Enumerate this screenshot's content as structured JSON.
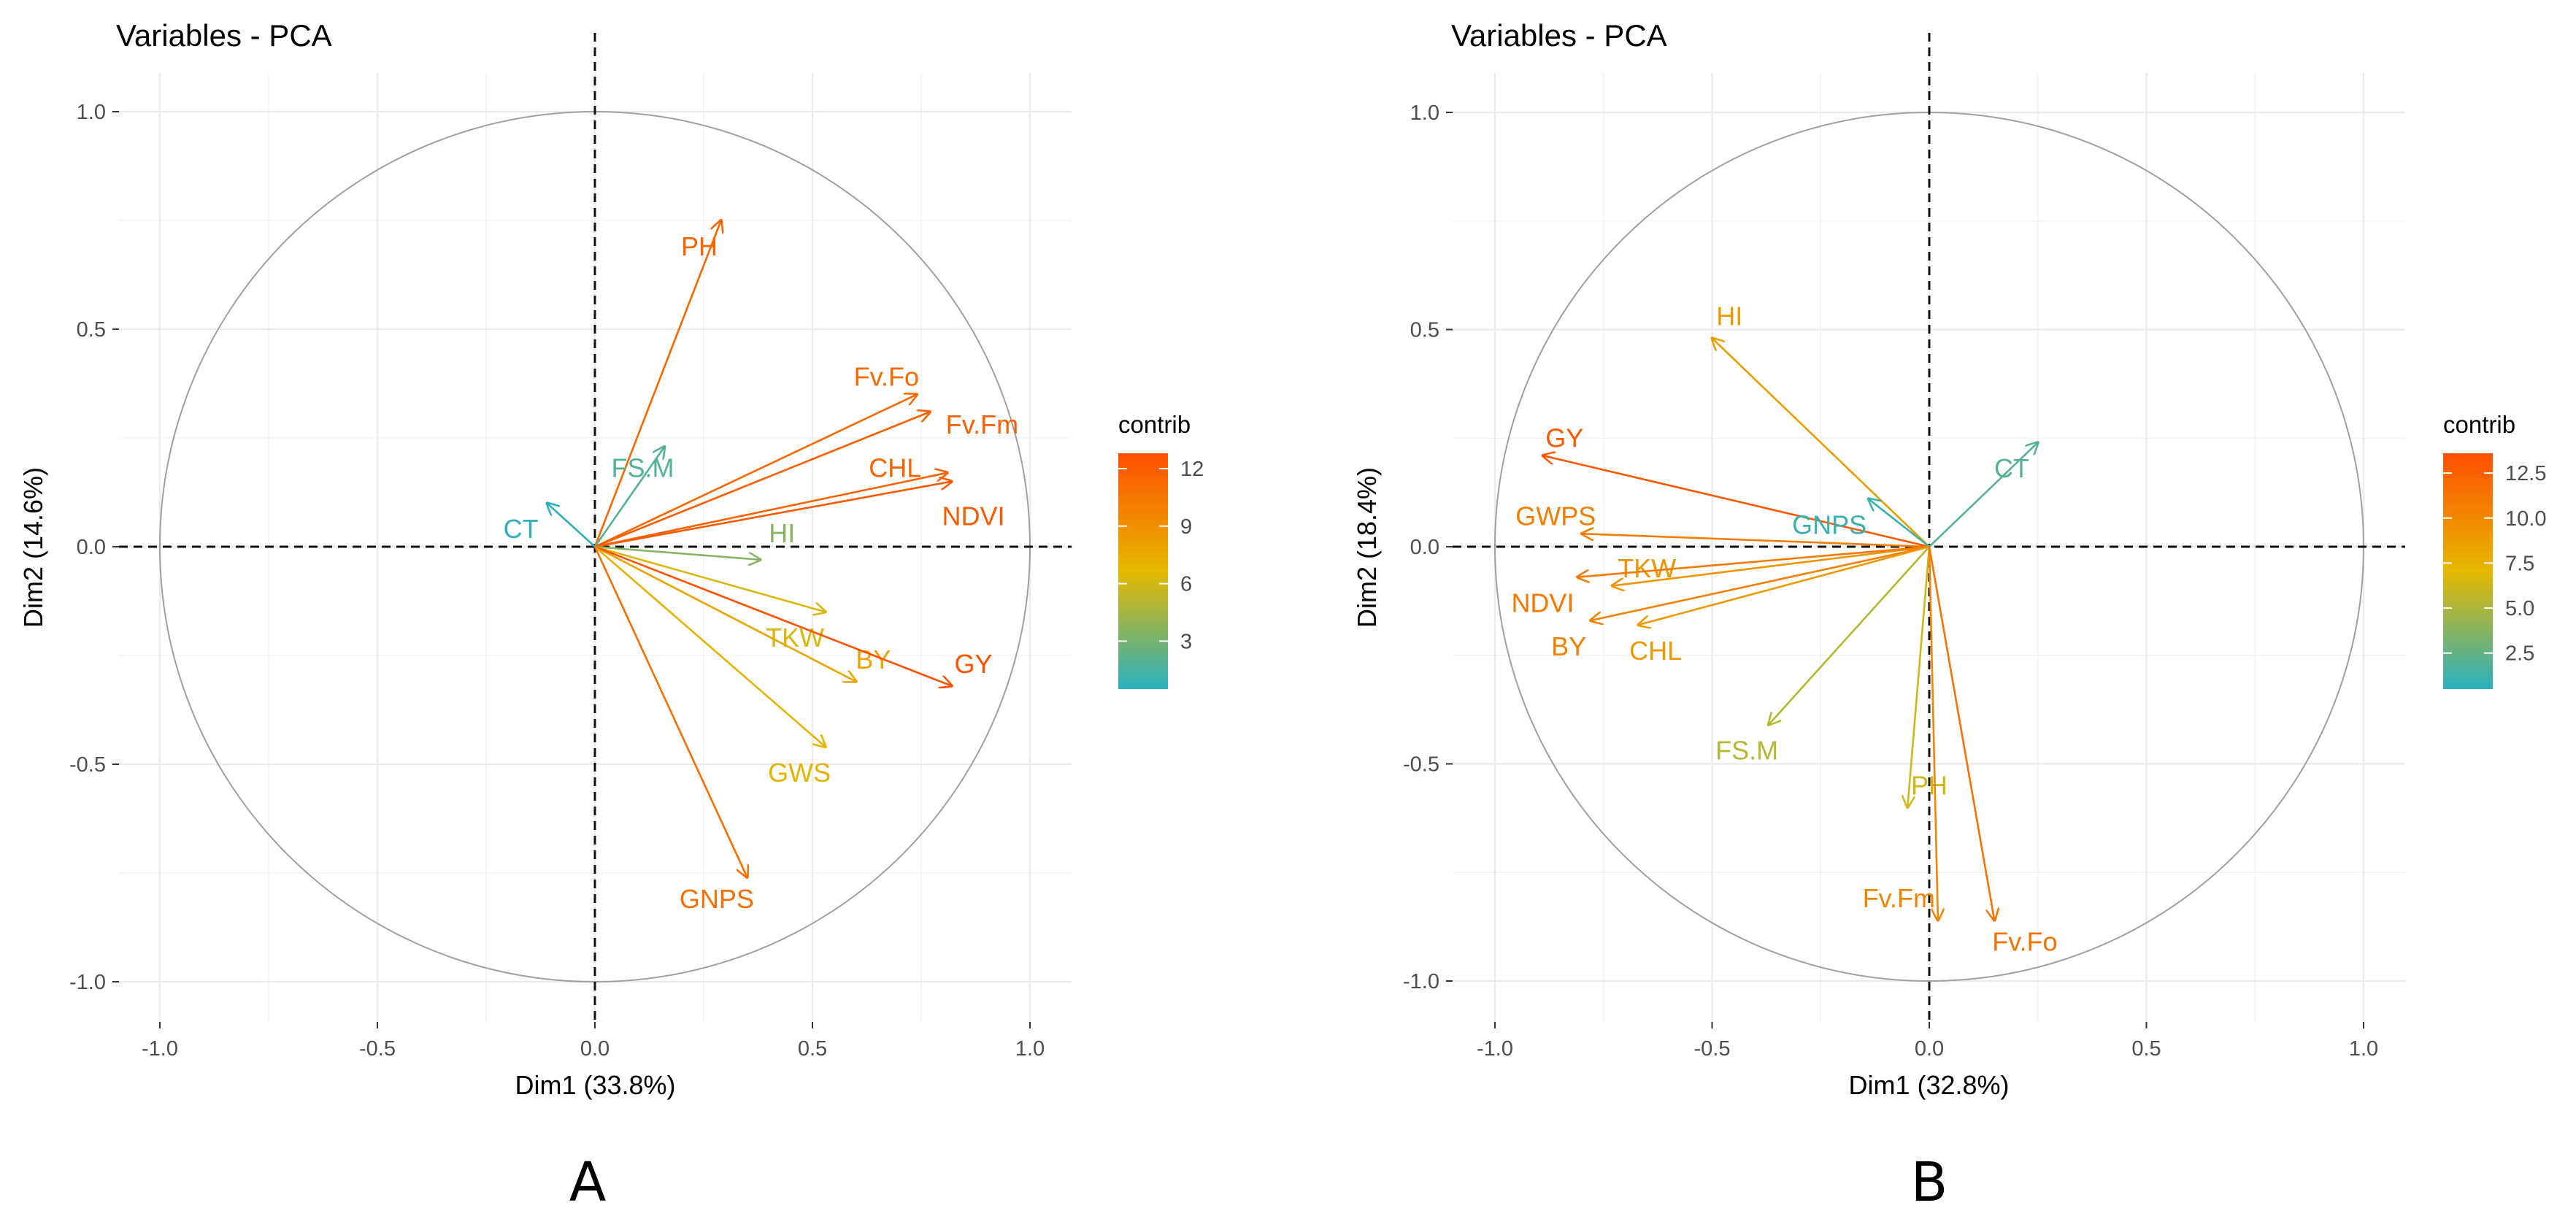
{
  "colors": {
    "low": "#2ab0c0",
    "mid": "#e6b800",
    "high": "#ff4f00",
    "grid": "#ebebeb",
    "circle": "#a0a0a0",
    "axis_text": "#4d4d4d"
  },
  "chart_data": [
    {
      "type": "scatter",
      "panel_label": "A",
      "title": "Variables - PCA",
      "xlabel": "Dim1 (33.8%)",
      "ylabel": "Dim2 (14.6%)",
      "xlim": [
        -1.1,
        1.1
      ],
      "ylim": [
        -1.1,
        1.1
      ],
      "ticks": [
        -1.0,
        -0.5,
        0.0,
        0.5,
        1.0
      ],
      "tick_labels": [
        "-1.0",
        "-0.5",
        "0.0",
        "0.5",
        "1.0"
      ],
      "legend": {
        "title": "contrib",
        "min": 0.5,
        "max": 12.8,
        "ticks": [
          3,
          6,
          9,
          12
        ],
        "tick_labels": [
          "3",
          "6",
          "9",
          "12"
        ]
      },
      "variables": [
        {
          "name": "PH",
          "x": 0.29,
          "y": 0.75,
          "label_x": 0.24,
          "label_y": 0.69,
          "contrib": 11.5
        },
        {
          "name": "Fv.Fo",
          "x": 0.74,
          "y": 0.35,
          "label_x": 0.67,
          "label_y": 0.39,
          "contrib": 11.3
        },
        {
          "name": "Fv.Fm",
          "x": 0.77,
          "y": 0.31,
          "label_x": 0.89,
          "label_y": 0.28,
          "contrib": 11.8
        },
        {
          "name": "FS.M",
          "x": 0.16,
          "y": 0.23,
          "label_x": 0.11,
          "label_y": 0.18,
          "contrib": 1.8
        },
        {
          "name": "CHL",
          "x": 0.81,
          "y": 0.17,
          "label_x": 0.69,
          "label_y": 0.18,
          "contrib": 11.6
        },
        {
          "name": "NDVI",
          "x": 0.82,
          "y": 0.15,
          "label_x": 0.87,
          "label_y": 0.07,
          "contrib": 12.2
        },
        {
          "name": "CT",
          "x": -0.11,
          "y": 0.1,
          "label_x": -0.17,
          "label_y": 0.04,
          "contrib": 0.6
        },
        {
          "name": "HI",
          "x": 0.38,
          "y": -0.03,
          "label_x": 0.43,
          "label_y": 0.03,
          "contrib": 3.5
        },
        {
          "name": "TKW",
          "x": 0.53,
          "y": -0.15,
          "label_x": 0.46,
          "label_y": -0.21,
          "contrib": 6.2
        },
        {
          "name": "BY",
          "x": 0.6,
          "y": -0.31,
          "label_x": 0.64,
          "label_y": -0.26,
          "contrib": 7.8
        },
        {
          "name": "GY",
          "x": 0.82,
          "y": -0.32,
          "label_x": 0.87,
          "label_y": -0.27,
          "contrib": 12.6
        },
        {
          "name": "GWS",
          "x": 0.53,
          "y": -0.46,
          "label_x": 0.47,
          "label_y": -0.52,
          "contrib": 7.0
        },
        {
          "name": "GNPS",
          "x": 0.35,
          "y": -0.76,
          "label_x": 0.28,
          "label_y": -0.81,
          "contrib": 10.9
        }
      ]
    },
    {
      "type": "scatter",
      "panel_label": "B",
      "title": "Variables - PCA",
      "xlabel": "Dim1 (32.8%)",
      "ylabel": "Dim2 (18.4%)",
      "xlim": [
        -1.1,
        1.1
      ],
      "ylim": [
        -1.1,
        1.1
      ],
      "ticks": [
        -1.0,
        -0.5,
        0.0,
        0.5,
        1.0
      ],
      "tick_labels": [
        "-1.0",
        "-0.5",
        "0.0",
        "0.5",
        "1.0"
      ],
      "legend": {
        "title": "contrib",
        "min": 0.5,
        "max": 13.6,
        "ticks": [
          2.5,
          5.0,
          7.5,
          10.0,
          12.5
        ],
        "tick_labels": [
          "2.5",
          "5.0",
          "7.5",
          "10.0",
          "12.5"
        ]
      },
      "variables": [
        {
          "name": "HI",
          "x": -0.5,
          "y": 0.48,
          "label_x": -0.46,
          "label_y": 0.53,
          "contrib": 8.8
        },
        {
          "name": "GY",
          "x": -0.89,
          "y": 0.21,
          "label_x": -0.84,
          "label_y": 0.25,
          "contrib": 13.0
        },
        {
          "name": "CT",
          "x": 0.25,
          "y": 0.24,
          "label_x": 0.19,
          "label_y": 0.18,
          "contrib": 2.0
        },
        {
          "name": "GNPS",
          "x": -0.14,
          "y": 0.11,
          "label_x": -0.23,
          "label_y": 0.05,
          "contrib": 1.0
        },
        {
          "name": "GWPS",
          "x": -0.8,
          "y": 0.03,
          "label_x": -0.86,
          "label_y": 0.07,
          "contrib": 10.7
        },
        {
          "name": "TKW",
          "x": -0.73,
          "y": -0.09,
          "label_x": -0.65,
          "label_y": -0.05,
          "contrib": 9.3
        },
        {
          "name": "NDVI",
          "x": -0.81,
          "y": -0.07,
          "label_x": -0.89,
          "label_y": -0.13,
          "contrib": 11.0
        },
        {
          "name": "BY",
          "x": -0.78,
          "y": -0.17,
          "label_x": -0.83,
          "label_y": -0.23,
          "contrib": 10.5
        },
        {
          "name": "CHL",
          "x": -0.67,
          "y": -0.18,
          "label_x": -0.63,
          "label_y": -0.24,
          "contrib": 9.0
        },
        {
          "name": "FS.M",
          "x": -0.37,
          "y": -0.41,
          "label_x": -0.42,
          "label_y": -0.47,
          "contrib": 5.4
        },
        {
          "name": "PH",
          "x": -0.05,
          "y": -0.6,
          "label_x": 0.0,
          "label_y": -0.55,
          "contrib": 6.3
        },
        {
          "name": "Fv.Fm",
          "x": 0.02,
          "y": -0.86,
          "label_x": -0.07,
          "label_y": -0.81,
          "contrib": 10.3
        },
        {
          "name": "Fv.Fo",
          "x": 0.15,
          "y": -0.86,
          "label_x": 0.22,
          "label_y": -0.91,
          "contrib": 11.4
        }
      ]
    }
  ]
}
